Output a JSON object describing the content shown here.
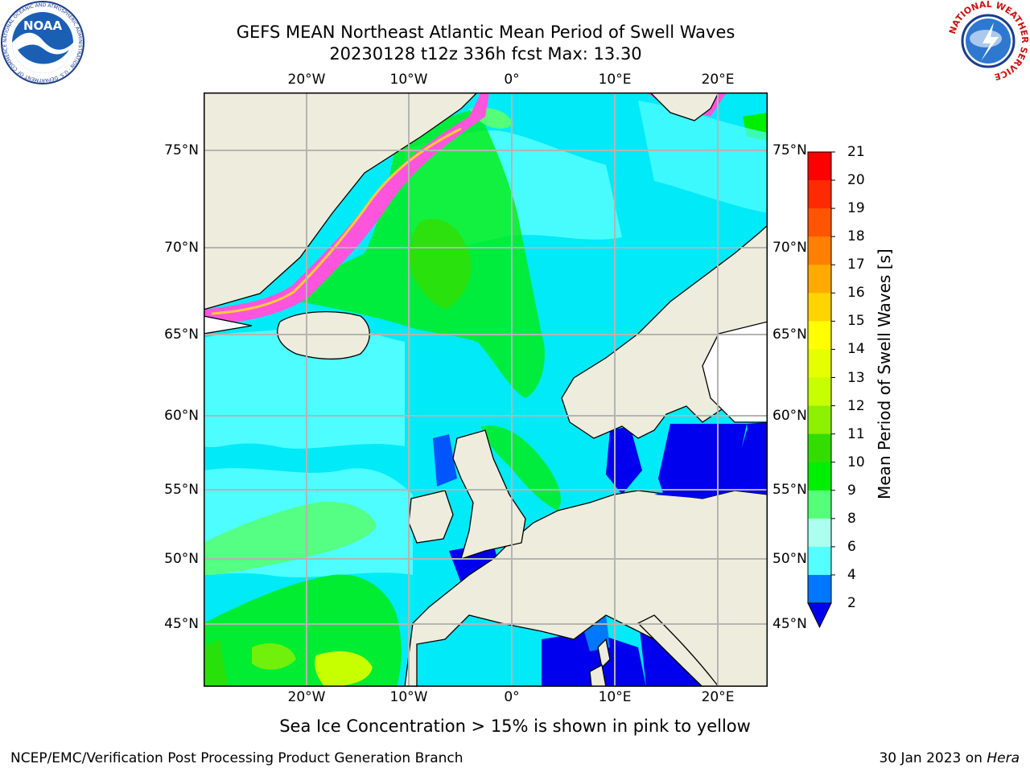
{
  "header": {
    "title_line1": "GEFS MEAN Northeast Atlantic Mean Period of Swell Waves",
    "title_line2": "20230128 t12z 336h fcst   Max: 13.30"
  },
  "map": {
    "lon_ticks_top": [
      "20°W",
      "10°W",
      "0°",
      "10°E",
      "20°E"
    ],
    "lon_ticks_bottom": [
      "20°W",
      "10°W",
      "0°",
      "10°E",
      "20°E"
    ],
    "lat_ticks_left": [
      "75°N",
      "70°N",
      "65°N",
      "60°N",
      "55°N",
      "50°N",
      "45°N"
    ],
    "lat_ticks_right": [
      "75°N",
      "70°N",
      "65°N",
      "60°N",
      "55°N",
      "50°N",
      "45°N"
    ]
  },
  "colorbar": {
    "title": "Mean Period of Swell Waves [s]",
    "labels": [
      "21",
      "20",
      "19",
      "18",
      "17",
      "16",
      "15",
      "14",
      "13",
      "12",
      "11",
      "10",
      "9",
      "8",
      "6",
      "4",
      "2"
    ],
    "colors": [
      "#ff0000",
      "#ff2a00",
      "#ff5500",
      "#ff7f00",
      "#ffaa00",
      "#ffd400",
      "#ffff00",
      "#e5ff00",
      "#c8ff00",
      "#8cf000",
      "#33dd00",
      "#00ee00",
      "#55ff77",
      "#aaffee",
      "#55ffff",
      "#00eeff",
      "#0077ff"
    ],
    "extend_color": "#0000ee"
  },
  "footer": {
    "ice_note": "Sea Ice Concentration > 15% is shown in pink to yellow",
    "credit_left": "NCEP/EMC/Verification Post Processing Product Generation Branch",
    "credit_date": "30 Jan 2023 on ",
    "credit_host": "Hera"
  },
  "logos": {
    "noaa_text": "NOAA",
    "noaa_ring_text": "NATIONAL OCEANIC AND ATMOSPHERIC ADMINISTRATION · U.S. DEPARTMENT OF COMMERCE ·",
    "nws_ring_text": "NATIONAL WEATHER SERVICE"
  }
}
